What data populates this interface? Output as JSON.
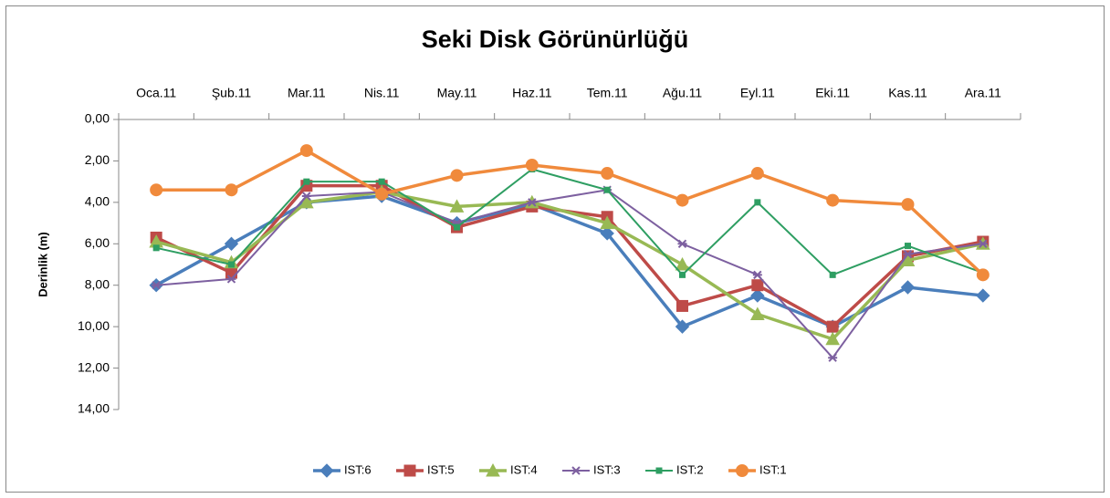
{
  "chart_data": {
    "type": "line",
    "title": "Seki Disk Görünürlüğü",
    "y_label": "Derinlik (m)",
    "categories": [
      "Oca.11",
      "Şub.11",
      "Mar.11",
      "Nis.11",
      "May.11",
      "Haz.11",
      "Tem.11",
      "Ağu.11",
      "Eyl.11",
      "Eki.11",
      "Kas.11",
      "Ara.11"
    ],
    "y_inverted": true,
    "ylim": [
      0,
      14
    ],
    "yticks": [
      {
        "value": 0,
        "label": "0,00"
      },
      {
        "value": 2,
        "label": "2,00"
      },
      {
        "value": 4,
        "label": "4,00"
      },
      {
        "value": 6,
        "label": "6,00"
      },
      {
        "value": 8,
        "label": "8,00"
      },
      {
        "value": 10,
        "label": "10,00"
      },
      {
        "value": 12,
        "label": "12,00"
      },
      {
        "value": 14,
        "label": "14,00"
      }
    ],
    "legend": "bottom",
    "series": [
      {
        "name": "IST:6",
        "color": "#4a7ebb",
        "marker": "diamond",
        "values": [
          8.0,
          6.0,
          4.0,
          3.7,
          5.0,
          4.1,
          5.5,
          10.0,
          8.5,
          10.0,
          8.1,
          8.5
        ]
      },
      {
        "name": "IST:5",
        "color": "#be4b48",
        "marker": "square",
        "values": [
          5.7,
          7.4,
          3.2,
          3.2,
          5.2,
          4.2,
          4.7,
          9.0,
          8.0,
          10.0,
          6.6,
          5.9
        ]
      },
      {
        "name": "IST:4",
        "color": "#98b954",
        "marker": "triangle",
        "values": [
          5.9,
          6.9,
          4.0,
          3.5,
          4.2,
          4.0,
          5.0,
          7.0,
          9.4,
          10.6,
          6.8,
          6.0
        ]
      },
      {
        "name": "IST:3",
        "color": "#7d60a0",
        "marker": "star",
        "values": [
          8.0,
          7.7,
          3.7,
          3.5,
          5.0,
          4.0,
          3.4,
          6.0,
          7.5,
          11.5,
          6.5,
          6.0
        ]
      },
      {
        "name": "IST:2",
        "color": "#2e9e62",
        "marker": "smallsquare",
        "values": [
          6.2,
          7.0,
          3.0,
          3.0,
          5.2,
          2.4,
          3.4,
          7.5,
          4.0,
          7.5,
          6.1,
          7.4
        ]
      },
      {
        "name": "IST:1",
        "color": "#f08a3c",
        "marker": "circle",
        "values": [
          3.4,
          3.4,
          1.5,
          3.6,
          2.7,
          2.2,
          2.6,
          3.9,
          2.6,
          3.9,
          4.1,
          7.5
        ]
      }
    ]
  }
}
